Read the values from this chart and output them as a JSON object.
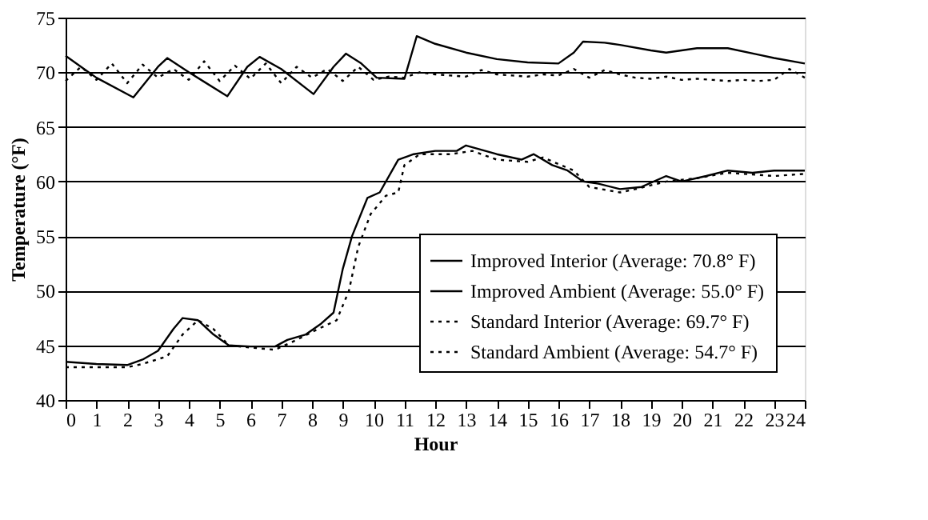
{
  "chart_data": {
    "type": "line",
    "xlabel": "Hour",
    "ylabel": "Temperature (°F)",
    "xlim": [
      0,
      24
    ],
    "xticks": [
      0,
      1,
      2,
      3,
      4,
      5,
      6,
      7,
      8,
      9,
      10,
      11,
      12,
      13,
      14,
      15,
      16,
      17,
      18,
      19,
      20,
      21,
      22,
      23,
      24
    ],
    "ylim": [
      40,
      75
    ],
    "yticks": [
      40,
      45,
      50,
      55,
      60,
      65,
      70,
      75
    ],
    "grid": "y",
    "legend": "bottom right",
    "marker": "none",
    "series": [
      {
        "name": "Improved Interior (Average: 70.8° F)",
        "color": "#000000",
        "line_style": "solid",
        "x": [
          0,
          0.5,
          1,
          2.2,
          3.0,
          3.3,
          4,
          5.25,
          5.9,
          6.3,
          7,
          8.05,
          8.7,
          9.1,
          9.6,
          10.1,
          11.0,
          11.4,
          12,
          13,
          14,
          15,
          16,
          16.5,
          16.8,
          17.5,
          18,
          19,
          19.5,
          20.5,
          21.5,
          22.5,
          23,
          24
        ],
        "values": [
          71.5,
          70.5,
          69.5,
          67.7,
          70.5,
          71.3,
          70.0,
          67.8,
          70.5,
          71.4,
          70.3,
          68.0,
          70.5,
          71.7,
          70.8,
          69.5,
          69.4,
          73.3,
          72.6,
          71.8,
          71.2,
          70.9,
          70.8,
          71.8,
          72.8,
          72.7,
          72.5,
          72.0,
          71.8,
          72.2,
          72.2,
          71.6,
          71.3,
          70.8
        ]
      },
      {
        "name": "Improved Ambient (Average: 55.0° F)",
        "color": "#000000",
        "line_style": "solid",
        "x": [
          0,
          1,
          2,
          2.5,
          3,
          3.5,
          3.8,
          4.3,
          4.8,
          5.3,
          6,
          6.8,
          7.2,
          7.8,
          8.3,
          8.7,
          9,
          9.3,
          9.8,
          10.2,
          10.8,
          11.3,
          12,
          12.7,
          13,
          14,
          14.8,
          15.2,
          15.8,
          16.3,
          16.8,
          17.3,
          18,
          18.7,
          19.5,
          20,
          20.8,
          21.5,
          22.3,
          23,
          24
        ],
        "values": [
          43.5,
          43.3,
          43.2,
          43.7,
          44.5,
          46.5,
          47.5,
          47.3,
          46.0,
          45.0,
          44.9,
          44.9,
          45.5,
          46.0,
          47.0,
          48.0,
          52.0,
          55.0,
          58.5,
          59.0,
          62.0,
          62.5,
          62.8,
          62.8,
          63.3,
          62.5,
          62.0,
          62.5,
          61.5,
          61.0,
          60.0,
          59.8,
          59.3,
          59.5,
          60.5,
          60.0,
          60.5,
          61.0,
          60.8,
          61.0,
          61.0
        ]
      },
      {
        "name": "Standard Interior (Average: 69.7° F)",
        "color": "#000000",
        "line_style": "dotted",
        "x": [
          0,
          0.5,
          1,
          1.5,
          2,
          2.5,
          3,
          3.5,
          4,
          4.5,
          5,
          5.5,
          6,
          6.5,
          7,
          7.5,
          8,
          8.5,
          9,
          9.5,
          10,
          10.5,
          11,
          11.5,
          12,
          12.5,
          13,
          13.5,
          14,
          14.5,
          15,
          15.5,
          16,
          16.5,
          17,
          17.5,
          18,
          18.5,
          19,
          19.5,
          20,
          20.5,
          21,
          21.5,
          22,
          22.5,
          23,
          23.5,
          24
        ],
        "values": [
          69.2,
          70.5,
          69.3,
          70.8,
          69.0,
          70.7,
          69.5,
          70.3,
          69.3,
          71.0,
          69.2,
          70.6,
          69.4,
          70.8,
          69.0,
          70.5,
          69.5,
          70.3,
          69.2,
          70.5,
          69.3,
          69.6,
          69.5,
          70.0,
          69.8,
          69.7,
          69.6,
          70.2,
          69.8,
          69.7,
          69.6,
          69.8,
          69.7,
          70.3,
          69.5,
          70.2,
          69.8,
          69.5,
          69.4,
          69.6,
          69.3,
          69.4,
          69.3,
          69.2,
          69.3,
          69.2,
          69.3,
          70.3,
          69.5
        ]
      },
      {
        "name": "Standard Ambient (Average: 54.7° F)",
        "color": "#000000",
        "line_style": "dotted",
        "x": [
          0,
          2,
          2.5,
          3.3,
          3.8,
          4.3,
          4.8,
          5.3,
          6,
          6.8,
          7.5,
          8.2,
          8.8,
          9.2,
          9.5,
          9.9,
          10.4,
          10.8,
          11,
          11.5,
          12.5,
          13.2,
          14,
          15,
          15.5,
          16.5,
          17,
          18,
          18.5,
          19.5,
          20.5,
          21.5,
          23,
          24
        ],
        "values": [
          43.0,
          43.0,
          43.3,
          44.0,
          46.0,
          47.3,
          46.5,
          45.0,
          44.8,
          44.6,
          45.5,
          46.5,
          47.3,
          50.0,
          54.0,
          57.0,
          58.7,
          59.0,
          61.5,
          62.5,
          62.5,
          62.8,
          62.0,
          61.8,
          62.2,
          61.0,
          59.5,
          59.0,
          59.3,
          60.0,
          60.3,
          60.8,
          60.5,
          60.7
        ]
      }
    ]
  }
}
